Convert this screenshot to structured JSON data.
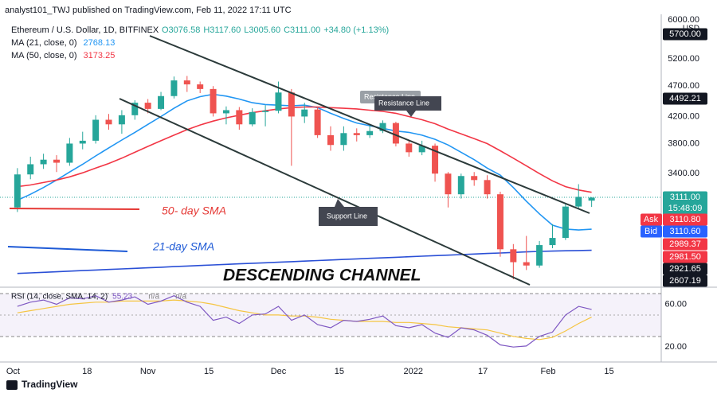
{
  "chart_data": {
    "type": "candlestick",
    "title": "analyst101_TWJ published on TradingView.com, Feb 11, 2022 17:11 UTC",
    "symbol": "Ethereum / U.S. Dollar, 1D, BITFINEX",
    "ohlc_labels": [
      "O3076.58",
      "H3117.60",
      "L3005.60",
      "C3111.00"
    ],
    "change_label": "+34.80 (+1.13%)",
    "currency": "USD",
    "log_scale": true,
    "x": [
      "2021-10-02",
      "2021-10-05",
      "2021-10-08",
      "2021-10-11",
      "2021-10-14",
      "2021-10-17",
      "2021-10-20",
      "2021-10-23",
      "2021-10-26",
      "2021-10-29",
      "2021-11-01",
      "2021-11-04",
      "2021-11-07",
      "2021-11-10",
      "2021-11-13",
      "2021-11-16",
      "2021-11-19",
      "2021-11-22",
      "2021-11-25",
      "2021-11-28",
      "2021-12-01",
      "2021-12-04",
      "2021-12-07",
      "2021-12-10",
      "2021-12-13",
      "2021-12-16",
      "2021-12-19",
      "2021-12-22",
      "2021-12-25",
      "2021-12-28",
      "2021-12-31",
      "2022-01-03",
      "2022-01-06",
      "2022-01-09",
      "2022-01-12",
      "2022-01-15",
      "2022-01-18",
      "2022-01-21",
      "2022-01-24",
      "2022-01-27",
      "2022-01-30",
      "2022-02-02",
      "2022-02-05",
      "2022-02-08",
      "2022-02-11"
    ],
    "open": [
      3000,
      3390,
      3520,
      3580,
      3540,
      3800,
      3840,
      4150,
      4080,
      4220,
      4420,
      4320,
      4530,
      4800,
      4730,
      4650,
      4250,
      4300,
      4080,
      4270,
      4290,
      4590,
      4200,
      4310,
      3920,
      3780,
      3950,
      3920,
      3980,
      4100,
      3800,
      3680,
      3770,
      3400,
      3150,
      3370,
      3320,
      3150,
      2570,
      2450,
      2420,
      2610,
      2680,
      3010,
      3076.58
    ],
    "high": [
      3470,
      3620,
      3660,
      3640,
      3880,
      3970,
      4220,
      4240,
      4300,
      4460,
      4480,
      4600,
      4870,
      4880,
      4780,
      4700,
      4360,
      4350,
      4330,
      4380,
      4780,
      4650,
      4420,
      4350,
      4050,
      4050,
      4020,
      4060,
      4140,
      4120,
      3850,
      3840,
      3800,
      3420,
      3400,
      3420,
      3380,
      3180,
      2620,
      2700,
      2650,
      2820,
      3050,
      3270,
      3117.6
    ],
    "low": [
      2950,
      3330,
      3460,
      3420,
      3500,
      3720,
      3800,
      4000,
      3940,
      4150,
      4250,
      4300,
      4490,
      4600,
      4580,
      4200,
      4080,
      4000,
      4050,
      4050,
      4250,
      3500,
      4100,
      3880,
      3700,
      3700,
      3830,
      3880,
      3950,
      3760,
      3620,
      3640,
      3300,
      3000,
      3100,
      3250,
      3100,
      2500,
      2300,
      2380,
      2400,
      2580,
      2660,
      2990,
      3005.6
    ],
    "close": [
      3390,
      3520,
      3580,
      3540,
      3800,
      3840,
      4150,
      4080,
      4220,
      4420,
      4320,
      4530,
      4800,
      4730,
      4650,
      4250,
      4300,
      4080,
      4270,
      4290,
      4590,
      4200,
      4310,
      3920,
      3780,
      3950,
      3920,
      3980,
      4100,
      3800,
      3680,
      3770,
      3400,
      3150,
      3370,
      3320,
      3150,
      2570,
      2450,
      2420,
      2610,
      2680,
      3010,
      3120,
      3111
    ],
    "up_color": "#26a69a",
    "down_color": "#ef5350",
    "series": [
      {
        "name": "MA (21, close, 0)",
        "legend_value": "2768.13",
        "color": "#2196f3",
        "values": [
          3080,
          3150,
          3230,
          3320,
          3420,
          3520,
          3630,
          3740,
          3850,
          3960,
          4080,
          4200,
          4330,
          4450,
          4520,
          4560,
          4530,
          4480,
          4420,
          4390,
          4380,
          4370,
          4380,
          4340,
          4250,
          4170,
          4100,
          4060,
          4020,
          3980,
          3960,
          3920,
          3860,
          3780,
          3680,
          3580,
          3470,
          3380,
          3230,
          3070,
          2930,
          2810,
          2770,
          2760,
          2768.13
        ]
      },
      {
        "name": "MA (50, close, 0)",
        "legend_value": "3173.25",
        "color": "#f23645",
        "values": [
          3240,
          3260,
          3290,
          3320,
          3360,
          3410,
          3470,
          3530,
          3600,
          3680,
          3760,
          3840,
          3920,
          4000,
          4070,
          4130,
          4180,
          4220,
          4260,
          4290,
          4320,
          4340,
          4350,
          4350,
          4340,
          4330,
          4320,
          4300,
          4280,
          4250,
          4200,
          4150,
          4090,
          4010,
          3940,
          3870,
          3800,
          3700,
          3600,
          3500,
          3400,
          3310,
          3240,
          3200,
          3173.25
        ]
      },
      {
        "color": "#2a4fd6",
        "values": [
          2350,
          2355,
          2360,
          2365,
          2370,
          2375,
          2380,
          2385,
          2390,
          2395,
          2400,
          2405,
          2410,
          2415,
          2420,
          2425,
          2430,
          2435,
          2440,
          2445,
          2450,
          2455,
          2460,
          2465,
          2470,
          2475,
          2480,
          2485,
          2490,
          2495,
          2500,
          2505,
          2510,
          2515,
          2520,
          2525,
          2530,
          2535,
          2540,
          2545,
          2550,
          2553,
          2556,
          2558,
          2560
        ]
      }
    ],
    "xlim": [
      "2021-09-28",
      "2022-02-27"
    ],
    "xticks": [
      {
        "value": "2021-10-01",
        "label": "Oct"
      },
      {
        "value": "2021-10-18",
        "label": "18"
      },
      {
        "value": "2021-11-01",
        "label": "Nov"
      },
      {
        "value": "2021-11-15",
        "label": "15"
      },
      {
        "value": "2021-12-01",
        "label": "Dec"
      },
      {
        "value": "2021-12-15",
        "label": "15"
      },
      {
        "value": "2022-01-01",
        "label": "2022"
      },
      {
        "value": "2022-01-17",
        "label": "17"
      },
      {
        "value": "2022-02-01",
        "label": "Feb"
      },
      {
        "value": "2022-02-15",
        "label": "15"
      }
    ],
    "ylim": [
      2240,
      6130
    ],
    "yticks": [
      {
        "value": 6000,
        "label": "6000.00"
      },
      {
        "value": 5200,
        "label": "5200.00"
      },
      {
        "value": 4700,
        "label": "4700.00"
      },
      {
        "value": 4200,
        "label": "4200.00"
      },
      {
        "value": 3800,
        "label": "3800.00"
      },
      {
        "value": 3400,
        "label": "3400.00"
      }
    ],
    "price_tags": [
      {
        "text": "5700.00",
        "color": "#131722"
      },
      {
        "text": "4492.21",
        "color": "#131722"
      },
      {
        "text": "3111.00",
        "sub": "15:48:09",
        "color": "#26a69a"
      },
      {
        "prefix": "Ask",
        "text": "3110.80",
        "color": "#f23645"
      },
      {
        "prefix": "Bid",
        "text": "3110.60",
        "color": "#2962ff"
      },
      {
        "text": "2989.37",
        "color": "#f23645"
      },
      {
        "text": "2981.50",
        "color": "#f23645"
      },
      {
        "text": "2921.65",
        "color": "#131722"
      },
      {
        "text": "2607.19",
        "color": "#131722"
      }
    ],
    "annotations": [
      "Resistance Line",
      "Resistance Line",
      "Support Line",
      "50- day SMA",
      "21-day SMA",
      "DESCENDING CHANNEL"
    ],
    "rsi": {
      "label": "RSI (14, close, SMA, 14, 2)",
      "readouts": [
        "55.23",
        "n/a",
        "n/a"
      ],
      "color": "#7e57c2",
      "sma_color": "#f5c542",
      "values": [
        58,
        62,
        64,
        60,
        66,
        65,
        68,
        62,
        64,
        67,
        60,
        63,
        68,
        62,
        58,
        45,
        48,
        42,
        50,
        51,
        58,
        45,
        50,
        41,
        38,
        45,
        44,
        46,
        49,
        40,
        38,
        41,
        33,
        29,
        38,
        36,
        31,
        22,
        20,
        21,
        30,
        34,
        50,
        58,
        55.23
      ],
      "sma": [
        52,
        54,
        56,
        58,
        60,
        61,
        62,
        62,
        63,
        63,
        63,
        63,
        64,
        63,
        62,
        60,
        57,
        54,
        52,
        50,
        50,
        49,
        49,
        48,
        46,
        45,
        44,
        44,
        44,
        43,
        43,
        42,
        41,
        39,
        38,
        37,
        36,
        33,
        30,
        28,
        27,
        29,
        35,
        42,
        48
      ],
      "ylim": [
        6,
        73
      ],
      "yticks": [
        {
          "value": 60,
          "label": "60.00"
        },
        {
          "value": 20,
          "label": "20.00"
        }
      ]
    },
    "footer": "TradingView"
  }
}
